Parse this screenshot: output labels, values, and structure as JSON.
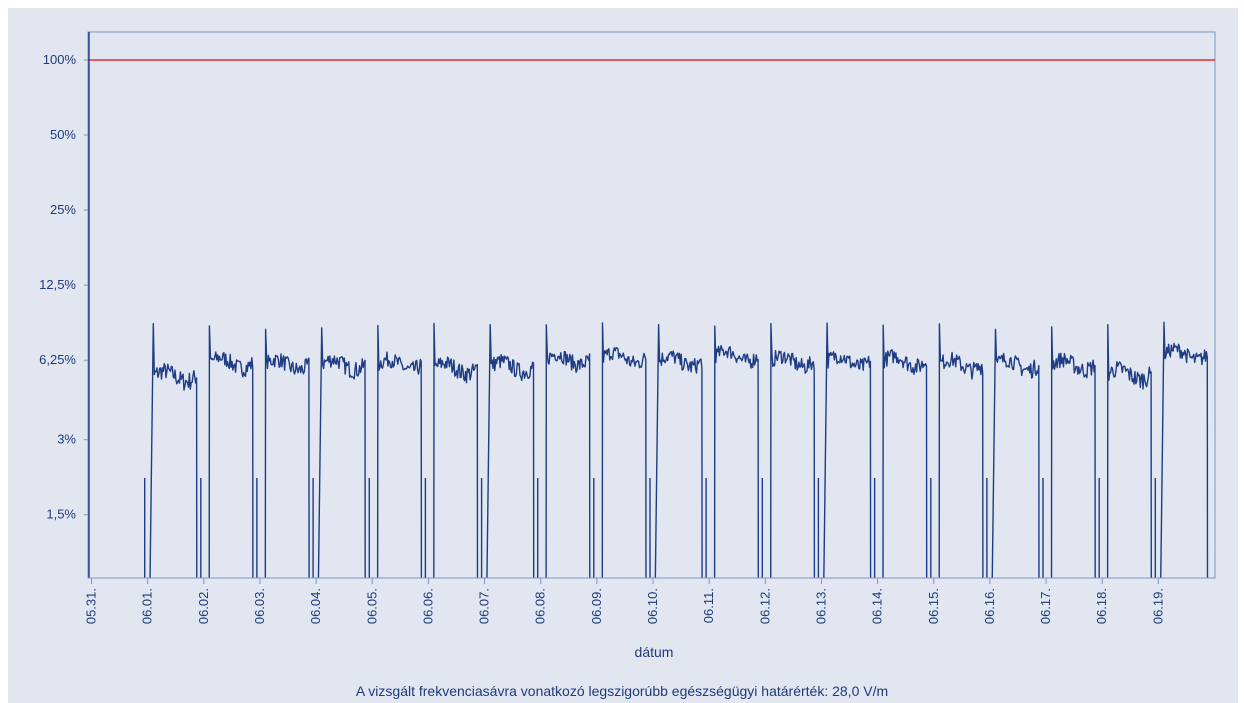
{
  "chart_data": {
    "type": "line",
    "title": "",
    "xlabel": "dátum",
    "ylabel": "",
    "y_scale": "log",
    "y_ticks": [
      {
        "label": "100%",
        "value": 100
      },
      {
        "label": "50%",
        "value": 50
      },
      {
        "label": "25%",
        "value": 25
      },
      {
        "label": "12,5%",
        "value": 12.5
      },
      {
        "label": "6,25%",
        "value": 6.25
      },
      {
        "label": "3%",
        "value": 3
      },
      {
        "label": "1,5%",
        "value": 1.5
      }
    ],
    "ylim": [
      0.37,
      130
    ],
    "xlim": [
      "05.31.",
      "06.19. 24:00"
    ],
    "x_ticks": [
      "05.31.",
      "06.01.",
      "06.02.",
      "06.03.",
      "06.04.",
      "06.05.",
      "06.06.",
      "06.07.",
      "06.08.",
      "06.09.",
      "06.10.",
      "06.11.",
      "06.12.",
      "06.13.",
      "06.14.",
      "06.15.",
      "06.16.",
      "06.17.",
      "06.18.",
      "06.19."
    ],
    "grid": false,
    "reference_line": {
      "value": 100,
      "color": "#e03030"
    },
    "series": [
      {
        "color": "#1f3d85",
        "pattern": "daily: ~0.7% overnight (about 21:00–02:30), spike to ~8.5% at switch-on, then ~5.5–6.8% during the day",
        "daily_points": [
          {
            "x": "06.01.",
            "low": 0.7,
            "high_mean": 5.4
          },
          {
            "x": "06.02.",
            "low": 0.7,
            "high_mean": 6.1
          },
          {
            "x": "06.03.",
            "low": 0.7,
            "high_mean": 6.0
          },
          {
            "x": "06.04.",
            "low": 0.7,
            "high_mean": 6.0
          },
          {
            "x": "06.05.",
            "low": 0.7,
            "high_mean": 6.0
          },
          {
            "x": "06.06.",
            "low": 0.7,
            "high_mean": 5.8
          },
          {
            "x": "06.07.",
            "low": 0.7,
            "high_mean": 5.9
          },
          {
            "x": "06.08.",
            "low": 0.7,
            "high_mean": 6.3
          },
          {
            "x": "06.09.",
            "low": 0.7,
            "high_mean": 6.4
          },
          {
            "x": "06.10.",
            "low": 0.7,
            "high_mean": 6.2
          },
          {
            "x": "06.11.",
            "low": 0.7,
            "high_mean": 6.5
          },
          {
            "x": "06.12.",
            "low": 0.7,
            "high_mean": 6.2
          },
          {
            "x": "06.13.",
            "low": 0.7,
            "high_mean": 6.2
          },
          {
            "x": "06.14.",
            "low": 0.7,
            "high_mean": 6.2
          },
          {
            "x": "06.15.",
            "low": 0.7,
            "high_mean": 6.0
          },
          {
            "x": "06.16.",
            "low": 0.7,
            "high_mean": 6.0
          },
          {
            "x": "06.17.",
            "low": 0.7,
            "high_mean": 6.0
          },
          {
            "x": "06.18.",
            "low": 0.7,
            "high_mean": 5.5
          },
          {
            "x": "06.19.",
            "low": 0.7,
            "high_mean": 6.6
          }
        ]
      }
    ],
    "footer_note": "A vizsgált frekvenciasávra vonatkozó legszigorúbb egészségügyi határérték: 28,0 V/m",
    "colors": {
      "background": "#e1e6f0",
      "plot_frame": "#7f96c2",
      "text": "#1f3b7a"
    }
  }
}
